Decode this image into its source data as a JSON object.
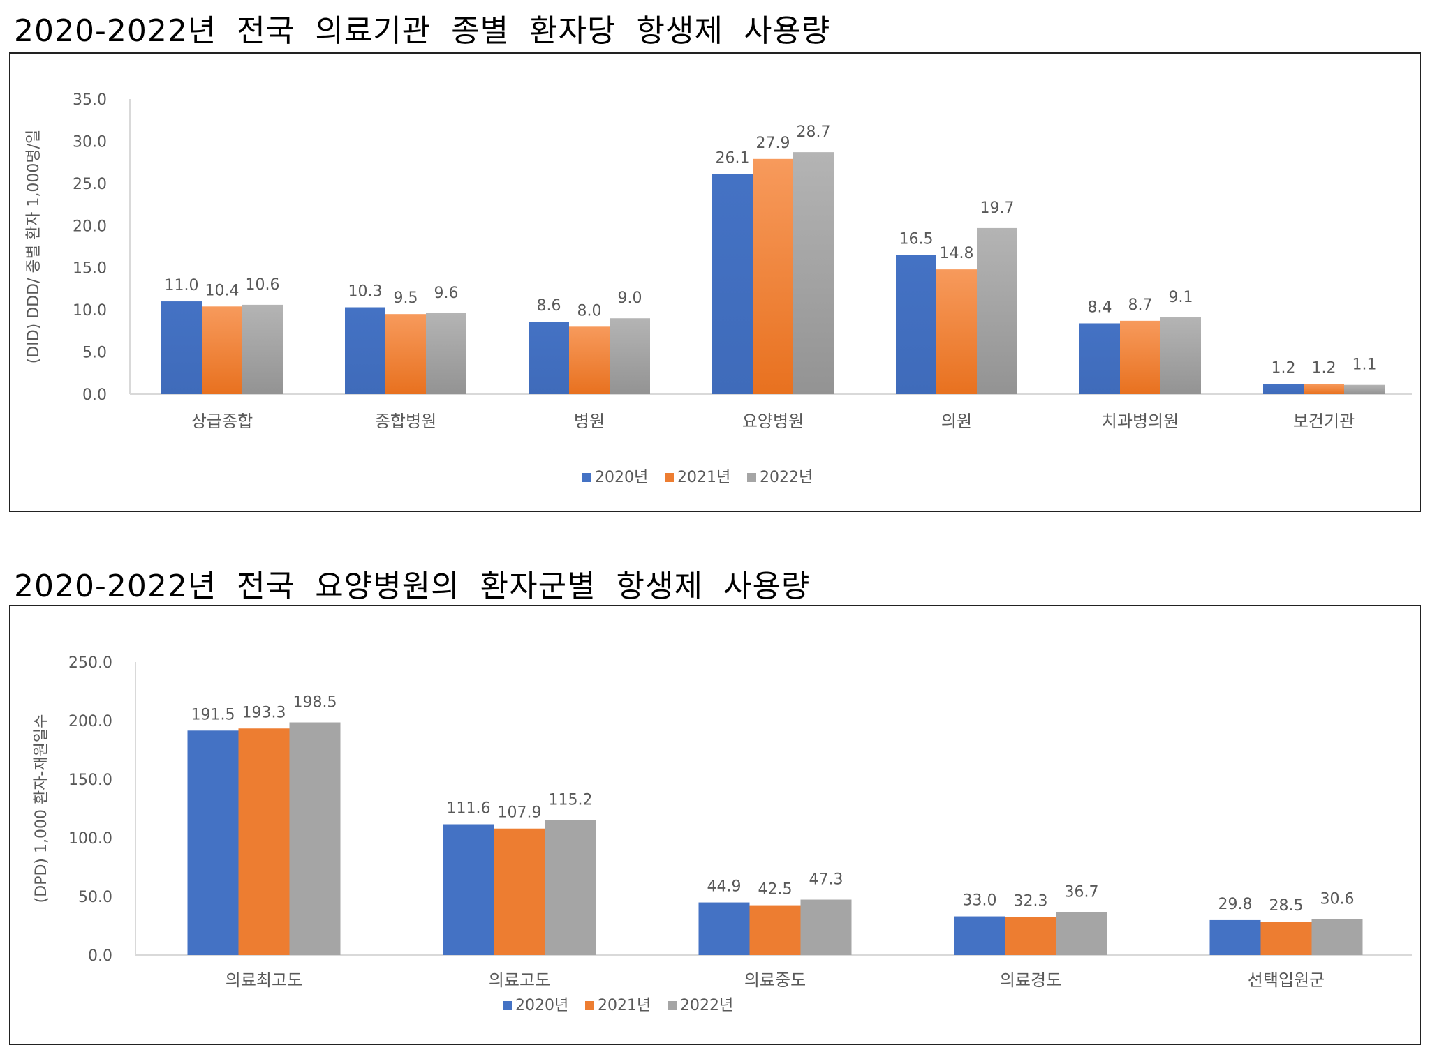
{
  "colors": {
    "2020": "#4472C4",
    "2021": "#ED7D31",
    "2022": "#A5A5A5"
  },
  "chart_data": [
    {
      "type": "bar",
      "title": "2020-2022년 전국 의료기관 종별 환자당 항생제 사용량",
      "ylabel": "(DID) DDD/ 종별 환자 1,000명/일",
      "xlabel": "",
      "ylim": [
        0,
        35
      ],
      "yticks": [
        "0.0",
        "5.0",
        "10.0",
        "15.0",
        "20.0",
        "25.0",
        "30.0",
        "35.0"
      ],
      "grid": false,
      "legend_position": "bottom",
      "categories": [
        "상급종합",
        "종합병원",
        "병원",
        "요양병원",
        "의원",
        "치과병의원",
        "보건기관"
      ],
      "series": [
        {
          "name": "2020년",
          "values": [
            11.0,
            10.3,
            8.6,
            26.1,
            16.5,
            8.4,
            1.2
          ]
        },
        {
          "name": "2021년",
          "values": [
            10.4,
            9.5,
            8.0,
            27.9,
            14.8,
            8.7,
            1.2
          ]
        },
        {
          "name": "2022년",
          "values": [
            10.6,
            9.6,
            9.0,
            28.7,
            19.7,
            9.1,
            1.1
          ]
        }
      ]
    },
    {
      "type": "bar",
      "title": "2020-2022년 전국 요양병원의 환자군별 항생제 사용량",
      "ylabel": "(DPD) 1,000 환자-재원일수",
      "xlabel": "",
      "ylim": [
        0,
        250
      ],
      "yticks": [
        "0.0",
        "50.0",
        "100.0",
        "150.0",
        "200.0",
        "250.0"
      ],
      "grid": false,
      "legend_position": "bottom",
      "categories": [
        "의료최고도",
        "의료고도",
        "의료중도",
        "의료경도",
        "선택입원군"
      ],
      "series": [
        {
          "name": "2020년",
          "values": [
            191.5,
            111.6,
            44.9,
            33.0,
            29.8
          ]
        },
        {
          "name": "2021년",
          "values": [
            193.3,
            107.9,
            42.5,
            32.3,
            28.5
          ]
        },
        {
          "name": "2022년",
          "values": [
            198.5,
            115.2,
            47.3,
            36.7,
            30.6
          ]
        }
      ]
    }
  ]
}
